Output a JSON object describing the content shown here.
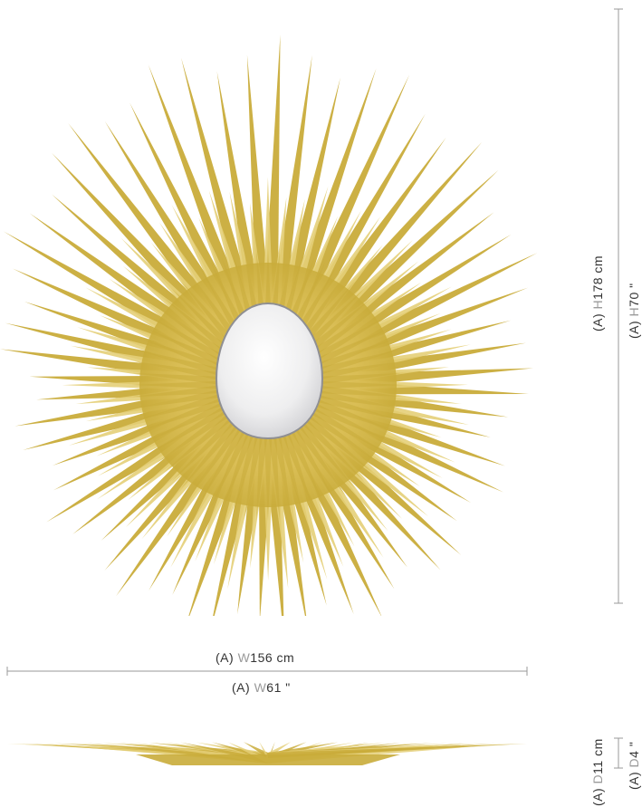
{
  "product": {
    "front_view": "sunburst-mirror-front",
    "side_view": "sunburst-mirror-side"
  },
  "colors": {
    "rays": "#c9ac3a",
    "rays_light": "#e4cf78",
    "mirror": "#eeeeef",
    "dimension_line": "#9a9a9a",
    "text": "#333333"
  },
  "dimensions": {
    "height": {
      "prefix": "(A)",
      "letter": "H",
      "metric": "178 cm",
      "imperial": "70 \""
    },
    "width": {
      "prefix": "(A)",
      "letter": "W",
      "metric": "156 cm",
      "imperial": "61 \""
    },
    "depth": {
      "prefix": "(A)",
      "letter": "D",
      "metric": "11 cm",
      "imperial": "4 \""
    }
  }
}
